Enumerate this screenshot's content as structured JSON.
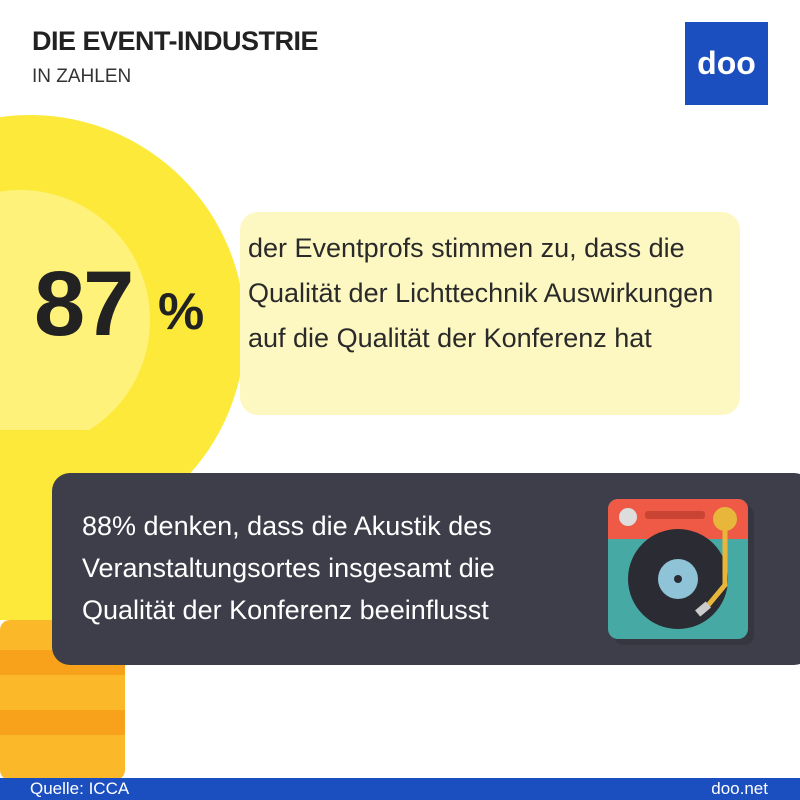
{
  "header": {
    "title": "DIE EVENT-INDUSTRIE",
    "subtitle": "IN ZAHLEN",
    "logo": "doo"
  },
  "stat_card": {
    "number": "87",
    "unit": "%",
    "text": "der Eventprofs stimmen zu, dass die Qualität der Lichttechnik Auswirkungen auf die Qualität der Konferenz hat"
  },
  "audio_card": {
    "text": "88% denken, dass die Akustik des Veranstaltungsortes insgesamt die Qualität der Konferenz beeinflusst"
  },
  "footer": {
    "source": "Quelle: ICCA",
    "site": "doo.net"
  }
}
